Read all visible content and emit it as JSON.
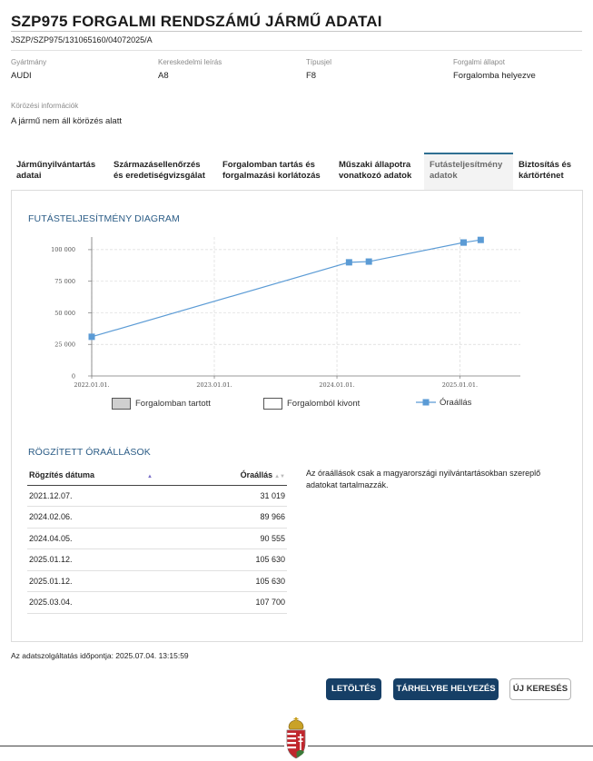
{
  "header": {
    "title": "SZP975 FORGALMI RENDSZÁMÚ JÁRMŰ ADATAI",
    "doc_id": "JSZP/SZP975/131065160/04072025/A"
  },
  "vehicle": {
    "manufacturer": {
      "label": "Gyártmány",
      "value": "AUDI"
    },
    "commercial": {
      "label": "Kereskedelmi leírás",
      "value": "A8"
    },
    "type": {
      "label": "Típusjel",
      "value": "F8"
    },
    "status": {
      "label": "Forgalmi állapot",
      "value": "Forgalomba helyezve"
    },
    "wanted": {
      "label": "Körözési információk",
      "value": "A jármű nem áll körözés alatt"
    }
  },
  "tabs": [
    {
      "line1": "Járműnyilvántartás",
      "line2": "adatai"
    },
    {
      "line1": "Származásellenőrzés",
      "line2": "és eredetiségvizsgálat"
    },
    {
      "line1": "Forgalomban tartás és",
      "line2": "forgalmazási korlátozás"
    },
    {
      "line1": "Műszaki állapotra",
      "line2": "vonatkozó adatok"
    },
    {
      "line1": "Futásteljesítmény",
      "line2": "adatok"
    },
    {
      "line1": "Biztosítás és",
      "line2": "kártörténet"
    }
  ],
  "chart_section_title": "FUTÁSTELJESÍTMÉNY DIAGRAM",
  "chart_data": {
    "type": "line",
    "title": "",
    "xlabel": "",
    "ylabel": "",
    "x_ticks": [
      "2022.01.01.",
      "2023.01.01.",
      "2024.01.01.",
      "2025.01.01."
    ],
    "y_ticks": [
      "0",
      "25 000",
      "50 000",
      "75 000",
      "100 000"
    ],
    "ylim": [
      0,
      110000
    ],
    "xlim": [
      "2022.01.01.",
      "2025.06.30."
    ],
    "grid": "dashed",
    "series": [
      {
        "name": "Óraállás",
        "color": "#5b9bd5",
        "points": [
          {
            "x": "2021.12.07.",
            "y": 31019
          },
          {
            "x": "2024.02.06.",
            "y": 89966
          },
          {
            "x": "2024.04.05.",
            "y": 90555
          },
          {
            "x": "2025.01.12.",
            "y": 105630
          },
          {
            "x": "2025.01.12.",
            "y": 105630
          },
          {
            "x": "2025.03.04.",
            "y": 107700
          }
        ]
      }
    ]
  },
  "legend": {
    "in_service": "Forgalomban tartott",
    "withdrawn": "Forgalomból kivont",
    "odometer": "Óraállás"
  },
  "recorded_title": "RÖGZÍTETT ÓRAÁLLÁSOK",
  "table": {
    "col_date": "Rögzítés dátuma",
    "col_value": "Óraállás",
    "rows": [
      {
        "date": "2021.12.07.",
        "value": "31 019"
      },
      {
        "date": "2024.02.06.",
        "value": "89 966"
      },
      {
        "date": "2024.04.05.",
        "value": "90 555"
      },
      {
        "date": "2025.01.12.",
        "value": "105 630"
      },
      {
        "date": "2025.01.12.",
        "value": "105 630"
      },
      {
        "date": "2025.03.04.",
        "value": "107 700"
      }
    ]
  },
  "note": "Az óraállások csak a magyarországi nyilvántartásokban szereplő adatokat tartalmazzák.",
  "query_time": "Az adatszolgáltatás időpontja: 2025.07.04. 13:15:59",
  "buttons": {
    "download": "LETÖLTÉS",
    "storage": "TÁRHELYBE HELYEZÉS",
    "new_search": "ÚJ KERESÉS"
  },
  "colors": {
    "accent": "#163f66",
    "section_title": "#2b5c86",
    "series": "#5b9bd5"
  },
  "icons": {
    "crest": "hungarian-coat-of-arms-icon",
    "sort_asc": "sort-ascending-icon",
    "sort_both": "sort-both-icon"
  }
}
